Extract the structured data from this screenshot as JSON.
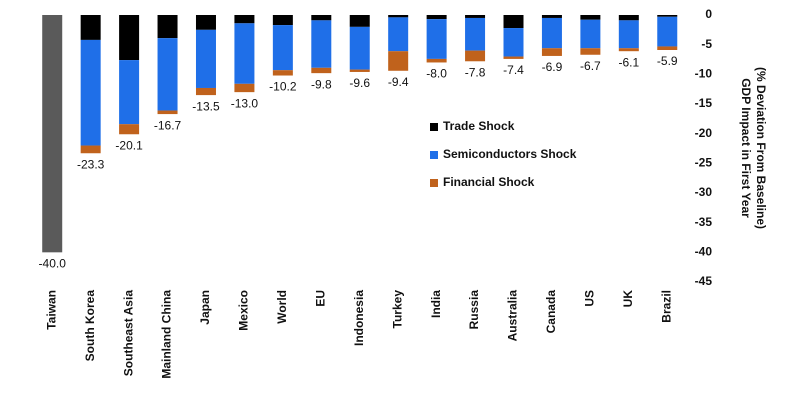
{
  "chart_data": {
    "type": "stacked-bar",
    "ylabel": [
      "GDP Impact in First Year",
      "(% Deviation From Baseline)"
    ],
    "categories": [
      "Taiwan",
      "South Korea",
      "Southeast Asia",
      "Mainland China",
      "Japan",
      "Mexico",
      "World",
      "EU",
      "Indonesia",
      "Turkey",
      "India",
      "Russia",
      "Australia",
      "Canada",
      "US",
      "UK",
      "Brazil"
    ],
    "series": [
      {
        "name": "Trade Shock",
        "color": "#000000",
        "values": [
          null,
          -4.2,
          -7.6,
          -3.9,
          -2.5,
          -1.4,
          -1.7,
          -0.9,
          -2.0,
          -0.4,
          -0.7,
          -0.5,
          -2.2,
          -0.5,
          -0.8,
          -0.9,
          -0.3
        ]
      },
      {
        "name": "Semiconductors Shock",
        "color": "#1f6fe8",
        "values": [
          null,
          -17.8,
          -10.8,
          -12.2,
          -9.8,
          -10.2,
          -7.6,
          -8.0,
          -7.2,
          -5.7,
          -6.7,
          -5.5,
          -4.8,
          -5.1,
          -4.8,
          -4.7,
          -5.0
        ]
      },
      {
        "name": "Financial Shock",
        "color": "#c0621c",
        "values": [
          null,
          -1.3,
          -1.7,
          -0.6,
          -1.2,
          -1.4,
          -0.9,
          -0.9,
          -0.4,
          -3.3,
          -0.6,
          -1.8,
          -0.4,
          -1.3,
          -1.1,
          -0.5,
          -0.6
        ]
      }
    ],
    "totals": {
      "color": "#5a5a5a",
      "values": [
        -40,
        -23.3,
        -20.1,
        -16.7,
        -13.5,
        -13.0,
        -10.2,
        -9.8,
        -9.6,
        -9.4,
        -8.0,
        -7.8,
        -7.4,
        -6.9,
        -6.7,
        -6.1,
        -5.9
      ],
      "value_labels": [
        "-40.0",
        "-23.3",
        "-20.1",
        "-16.7",
        "-13.5",
        "-13.0",
        "-10.2",
        "-9.8",
        "-9.6",
        "-9.4",
        "-8.0",
        "-7.8",
        "-7.4",
        "-6.9",
        "-6.7",
        "-6.1",
        "-5.9"
      ]
    },
    "ylim": [
      -45,
      0
    ],
    "yticks": [
      0,
      -5,
      -10,
      -15,
      -20,
      -25,
      -30,
      -35,
      -40,
      -45
    ]
  }
}
